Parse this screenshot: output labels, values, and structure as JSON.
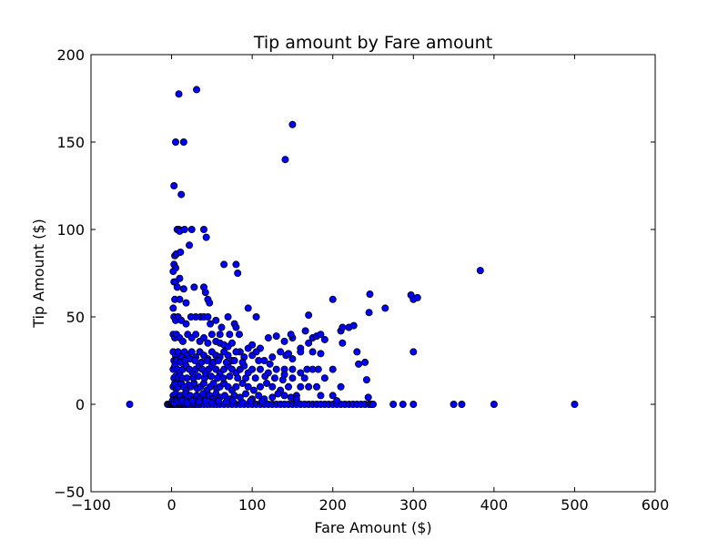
{
  "chart_data": {
    "type": "scatter",
    "title": "Tip amount by Fare amount",
    "xlabel": "Fare Amount ($)",
    "ylabel": "Tip Amount ($)",
    "xlim": [
      -100,
      600
    ],
    "ylim": [
      -50,
      200
    ],
    "xticks": [
      -100,
      0,
      100,
      200,
      300,
      400,
      500,
      600
    ],
    "yticks": [
      -50,
      0,
      50,
      100,
      150,
      200
    ],
    "xtick_labels": [
      "−100",
      "0",
      "100",
      "200",
      "300",
      "400",
      "500",
      "600"
    ],
    "ytick_labels": [
      "−50",
      "0",
      "50",
      "100",
      "150",
      "200"
    ],
    "grid": false,
    "marker_color": "#0000ff",
    "marker_edge": "#000000",
    "points": [
      [
        -52,
        0
      ],
      [
        -5,
        0
      ],
      [
        -3,
        0
      ],
      [
        -1,
        0
      ],
      [
        0,
        0
      ],
      [
        1,
        0
      ],
      [
        2,
        0
      ],
      [
        3,
        0
      ],
      [
        4,
        0
      ],
      [
        5,
        0
      ],
      [
        6,
        0
      ],
      [
        8,
        0
      ],
      [
        10,
        0
      ],
      [
        12,
        0
      ],
      [
        14,
        0
      ],
      [
        16,
        0
      ],
      [
        18,
        0
      ],
      [
        20,
        0
      ],
      [
        22,
        0
      ],
      [
        25,
        0
      ],
      [
        28,
        0
      ],
      [
        30,
        0
      ],
      [
        33,
        0
      ],
      [
        36,
        0
      ],
      [
        40,
        0
      ],
      [
        44,
        0
      ],
      [
        48,
        0
      ],
      [
        52,
        0
      ],
      [
        56,
        0
      ],
      [
        60,
        0
      ],
      [
        65,
        0
      ],
      [
        70,
        0
      ],
      [
        75,
        0
      ],
      [
        80,
        0
      ],
      [
        85,
        0
      ],
      [
        90,
        0
      ],
      [
        95,
        0
      ],
      [
        100,
        0
      ],
      [
        105,
        0
      ],
      [
        110,
        0
      ],
      [
        115,
        0
      ],
      [
        120,
        0
      ],
      [
        125,
        0
      ],
      [
        130,
        0
      ],
      [
        135,
        0
      ],
      [
        140,
        0
      ],
      [
        145,
        0
      ],
      [
        150,
        0
      ],
      [
        155,
        0
      ],
      [
        160,
        0
      ],
      [
        165,
        0
      ],
      [
        170,
        0
      ],
      [
        175,
        0
      ],
      [
        180,
        0
      ],
      [
        185,
        0
      ],
      [
        190,
        0
      ],
      [
        195,
        0
      ],
      [
        200,
        0
      ],
      [
        205,
        0
      ],
      [
        210,
        0
      ],
      [
        215,
        0
      ],
      [
        220,
        0
      ],
      [
        225,
        0
      ],
      [
        230,
        0
      ],
      [
        235,
        0
      ],
      [
        240,
        0
      ],
      [
        245,
        0
      ],
      [
        248,
        0
      ],
      [
        250,
        0
      ],
      [
        275,
        0
      ],
      [
        287,
        0
      ],
      [
        300,
        0
      ],
      [
        350,
        0
      ],
      [
        360,
        0
      ],
      [
        400,
        0
      ],
      [
        500,
        0
      ],
      [
        31,
        180
      ],
      [
        9,
        177.5
      ],
      [
        5,
        150
      ],
      [
        15,
        150
      ],
      [
        150,
        160
      ],
      [
        141,
        140
      ],
      [
        3,
        125
      ],
      [
        12,
        120
      ],
      [
        7,
        100
      ],
      [
        9,
        100
      ],
      [
        10,
        99
      ],
      [
        16,
        100
      ],
      [
        25,
        100
      ],
      [
        40,
        100
      ],
      [
        43,
        95.5
      ],
      [
        22,
        91
      ],
      [
        4,
        85
      ],
      [
        6,
        86
      ],
      [
        11,
        87
      ],
      [
        3,
        80
      ],
      [
        5,
        78
      ],
      [
        2,
        76
      ],
      [
        3,
        70
      ],
      [
        5,
        70
      ],
      [
        10,
        72
      ],
      [
        7,
        67
      ],
      [
        15,
        66
      ],
      [
        28,
        67
      ],
      [
        40,
        67
      ],
      [
        42,
        64
      ],
      [
        4,
        60
      ],
      [
        10,
        60
      ],
      [
        18,
        58
      ],
      [
        45,
        60
      ],
      [
        47,
        58
      ],
      [
        65,
        80
      ],
      [
        80,
        80
      ],
      [
        82,
        75
      ],
      [
        95,
        55
      ],
      [
        105,
        50
      ],
      [
        2,
        55
      ],
      [
        3,
        50
      ],
      [
        5,
        48
      ],
      [
        8,
        50
      ],
      [
        12,
        48
      ],
      [
        18,
        46
      ],
      [
        24,
        50
      ],
      [
        30,
        50
      ],
      [
        36,
        50
      ],
      [
        40,
        50
      ],
      [
        45,
        50
      ],
      [
        48,
        46
      ],
      [
        55,
        48
      ],
      [
        62,
        44
      ],
      [
        70,
        50
      ],
      [
        78,
        46
      ],
      [
        80,
        44
      ],
      [
        60,
        40
      ],
      [
        72,
        40
      ],
      [
        84,
        40
      ],
      [
        383,
        76.5
      ],
      [
        246,
        63
      ],
      [
        297,
        62.5
      ],
      [
        300,
        60
      ],
      [
        305,
        61
      ],
      [
        200,
        60
      ],
      [
        265,
        55
      ],
      [
        245,
        52.5
      ],
      [
        170,
        51
      ],
      [
        300,
        30
      ],
      [
        2,
        40
      ],
      [
        4,
        38
      ],
      [
        6,
        40
      ],
      [
        10,
        38
      ],
      [
        14,
        36
      ],
      [
        20,
        40
      ],
      [
        25,
        38
      ],
      [
        30,
        40
      ],
      [
        35,
        36
      ],
      [
        40,
        38
      ],
      [
        45,
        35
      ],
      [
        50,
        40
      ],
      [
        55,
        36
      ],
      [
        60,
        35
      ],
      [
        65,
        34
      ],
      [
        70,
        33
      ],
      [
        75,
        35
      ],
      [
        85,
        30
      ],
      [
        95,
        32
      ],
      [
        100,
        34
      ],
      [
        110,
        32
      ],
      [
        120,
        38
      ],
      [
        130,
        39
      ],
      [
        140,
        36
      ],
      [
        150,
        38
      ],
      [
        160,
        32
      ],
      [
        170,
        35
      ],
      [
        175,
        38
      ],
      [
        180,
        39
      ],
      [
        185,
        40
      ],
      [
        190,
        37
      ],
      [
        210,
        42
      ],
      [
        212,
        44
      ],
      [
        220,
        44
      ],
      [
        226,
        45
      ],
      [
        166,
        42
      ],
      [
        148,
        40
      ],
      [
        2,
        30
      ],
      [
        5,
        28
      ],
      [
        8,
        30
      ],
      [
        12,
        27
      ],
      [
        16,
        30
      ],
      [
        20,
        28
      ],
      [
        25,
        30
      ],
      [
        30,
        27
      ],
      [
        35,
        30
      ],
      [
        40,
        28
      ],
      [
        45,
        26
      ],
      [
        50,
        30
      ],
      [
        55,
        28
      ],
      [
        60,
        27
      ],
      [
        65,
        30
      ],
      [
        70,
        28
      ],
      [
        75,
        25
      ],
      [
        80,
        30
      ],
      [
        90,
        27
      ],
      [
        100,
        28
      ],
      [
        105,
        30
      ],
      [
        115,
        25
      ],
      [
        125,
        27
      ],
      [
        135,
        30
      ],
      [
        142,
        28
      ],
      [
        150,
        26
      ],
      [
        160,
        30
      ],
      [
        175,
        30
      ],
      [
        185,
        29
      ],
      [
        212,
        35
      ],
      [
        230,
        30
      ],
      [
        140,
        20
      ],
      [
        145,
        29
      ],
      [
        2,
        20
      ],
      [
        4,
        22
      ],
      [
        7,
        20
      ],
      [
        10,
        18
      ],
      [
        14,
        20
      ],
      [
        18,
        22
      ],
      [
        22,
        20
      ],
      [
        26,
        18
      ],
      [
        30,
        20
      ],
      [
        34,
        22
      ],
      [
        38,
        20
      ],
      [
        42,
        18
      ],
      [
        46,
        20
      ],
      [
        50,
        22
      ],
      [
        55,
        20
      ],
      [
        60,
        18
      ],
      [
        65,
        20
      ],
      [
        70,
        22
      ],
      [
        75,
        20
      ],
      [
        80,
        18
      ],
      [
        85,
        20
      ],
      [
        90,
        22
      ],
      [
        95,
        18
      ],
      [
        100,
        20
      ],
      [
        110,
        20
      ],
      [
        120,
        18
      ],
      [
        130,
        20
      ],
      [
        140,
        17
      ],
      [
        150,
        20
      ],
      [
        160,
        18
      ],
      [
        168,
        20
      ],
      [
        175,
        20
      ],
      [
        182,
        20
      ],
      [
        190,
        15
      ],
      [
        200,
        20
      ],
      [
        210,
        10
      ],
      [
        232,
        23
      ],
      [
        240,
        24
      ],
      [
        242,
        14
      ],
      [
        244,
        4
      ],
      [
        2,
        10
      ],
      [
        4,
        12
      ],
      [
        6,
        9
      ],
      [
        9,
        10
      ],
      [
        12,
        12
      ],
      [
        15,
        10
      ],
      [
        18,
        8
      ],
      [
        21,
        11
      ],
      [
        24,
        10
      ],
      [
        28,
        12
      ],
      [
        32,
        9
      ],
      [
        36,
        10
      ],
      [
        40,
        12
      ],
      [
        44,
        8
      ],
      [
        48,
        10
      ],
      [
        52,
        12
      ],
      [
        56,
        9
      ],
      [
        60,
        10
      ],
      [
        65,
        12
      ],
      [
        70,
        10
      ],
      [
        75,
        8
      ],
      [
        80,
        10
      ],
      [
        88,
        12
      ],
      [
        95,
        10
      ],
      [
        102,
        8
      ],
      [
        110,
        10
      ],
      [
        118,
        12
      ],
      [
        125,
        10
      ],
      [
        135,
        8
      ],
      [
        145,
        10
      ],
      [
        155,
        5
      ],
      [
        160,
        10
      ],
      [
        170,
        10
      ],
      [
        180,
        10
      ],
      [
        185,
        5
      ],
      [
        200,
        5
      ],
      [
        205,
        2
      ],
      [
        2,
        5
      ],
      [
        3,
        3
      ],
      [
        5,
        6
      ],
      [
        8,
        4
      ],
      [
        11,
        5
      ],
      [
        14,
        3
      ],
      [
        17,
        6
      ],
      [
        20,
        4
      ],
      [
        23,
        5
      ],
      [
        27,
        2
      ],
      [
        31,
        5
      ],
      [
        35,
        3
      ],
      [
        39,
        6
      ],
      [
        43,
        4
      ],
      [
        47,
        5
      ],
      [
        51,
        3
      ],
      [
        55,
        6
      ],
      [
        60,
        4
      ],
      [
        66,
        5
      ],
      [
        72,
        3
      ],
      [
        78,
        5
      ],
      [
        85,
        4
      ],
      [
        92,
        6
      ],
      [
        100,
        3
      ],
      [
        108,
        5
      ],
      [
        115,
        3
      ],
      [
        125,
        4
      ],
      [
        132,
        6
      ],
      [
        140,
        5
      ],
      [
        148,
        4
      ],
      [
        155,
        3
      ],
      [
        1,
        2
      ],
      [
        3,
        1
      ],
      [
        6,
        2
      ],
      [
        9,
        1.5
      ],
      [
        13,
        2
      ],
      [
        19,
        1
      ],
      [
        26,
        2
      ],
      [
        34,
        1.5
      ],
      [
        42,
        2
      ],
      [
        50,
        1
      ],
      [
        58,
        2
      ],
      [
        68,
        1.5
      ],
      [
        76,
        2
      ],
      [
        88,
        1
      ],
      [
        98,
        2
      ],
      [
        112,
        1.5
      ],
      [
        3,
        15
      ],
      [
        5,
        16
      ],
      [
        8,
        15
      ],
      [
        13,
        15
      ],
      [
        19,
        15
      ],
      [
        27,
        15
      ],
      [
        33,
        16
      ],
      [
        41,
        15
      ],
      [
        49,
        16
      ],
      [
        57,
        15
      ],
      [
        64,
        15
      ],
      [
        72,
        16
      ],
      [
        82,
        15
      ],
      [
        92,
        15
      ],
      [
        104,
        15
      ],
      [
        116,
        16
      ],
      [
        128,
        15
      ],
      [
        138,
        14
      ],
      [
        150,
        15
      ],
      [
        165,
        15
      ],
      [
        3,
        25
      ],
      [
        6,
        25
      ],
      [
        11,
        24
      ],
      [
        17,
        25
      ],
      [
        23,
        26
      ],
      [
        29,
        25
      ],
      [
        37,
        24
      ],
      [
        44,
        25
      ],
      [
        52,
        24
      ],
      [
        58,
        25
      ],
      [
        68,
        24
      ],
      [
        78,
        25
      ],
      [
        88,
        24
      ],
      [
        108,
        25
      ],
      [
        122,
        23
      ]
    ]
  }
}
